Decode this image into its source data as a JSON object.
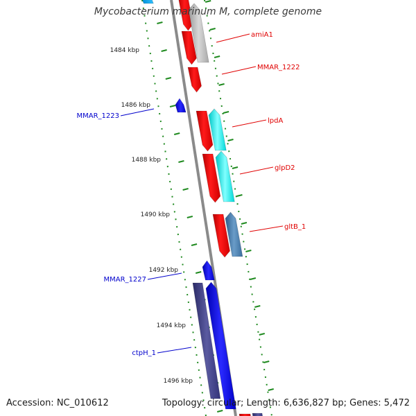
{
  "title": "Mycobacterium marinum M, complete genome",
  "footer": {
    "accession": "Accession: NC_010612",
    "summary": "Topology: circular; Length: 6,636,827 bp; Genes: 5,472"
  },
  "colors": {
    "backbone": "#8a8a8a",
    "tick": "#1f8a1f",
    "label_red": "#e00000",
    "label_blue": "#0000cc"
  },
  "kbp_labels": [
    "1484 kbp",
    "1486 kbp",
    "1488 kbp",
    "1490 kbp",
    "1492 kbp",
    "1494 kbp",
    "1496 kbp"
  ],
  "genes": [
    {
      "name": "amiA1",
      "color": "#e00000"
    },
    {
      "name": "MMAR_1222",
      "color": "#e00000"
    },
    {
      "name": "MMAR_1223",
      "color": "#0000cc"
    },
    {
      "name": "lpdA",
      "color": "#e00000"
    },
    {
      "name": "glpD2",
      "color": "#e00000"
    },
    {
      "name": "gltB_1",
      "color": "#e00000"
    },
    {
      "name": "MMAR_1227",
      "color": "#0000cc"
    },
    {
      "name": "ctpH_1",
      "color": "#0000cc"
    }
  ]
}
